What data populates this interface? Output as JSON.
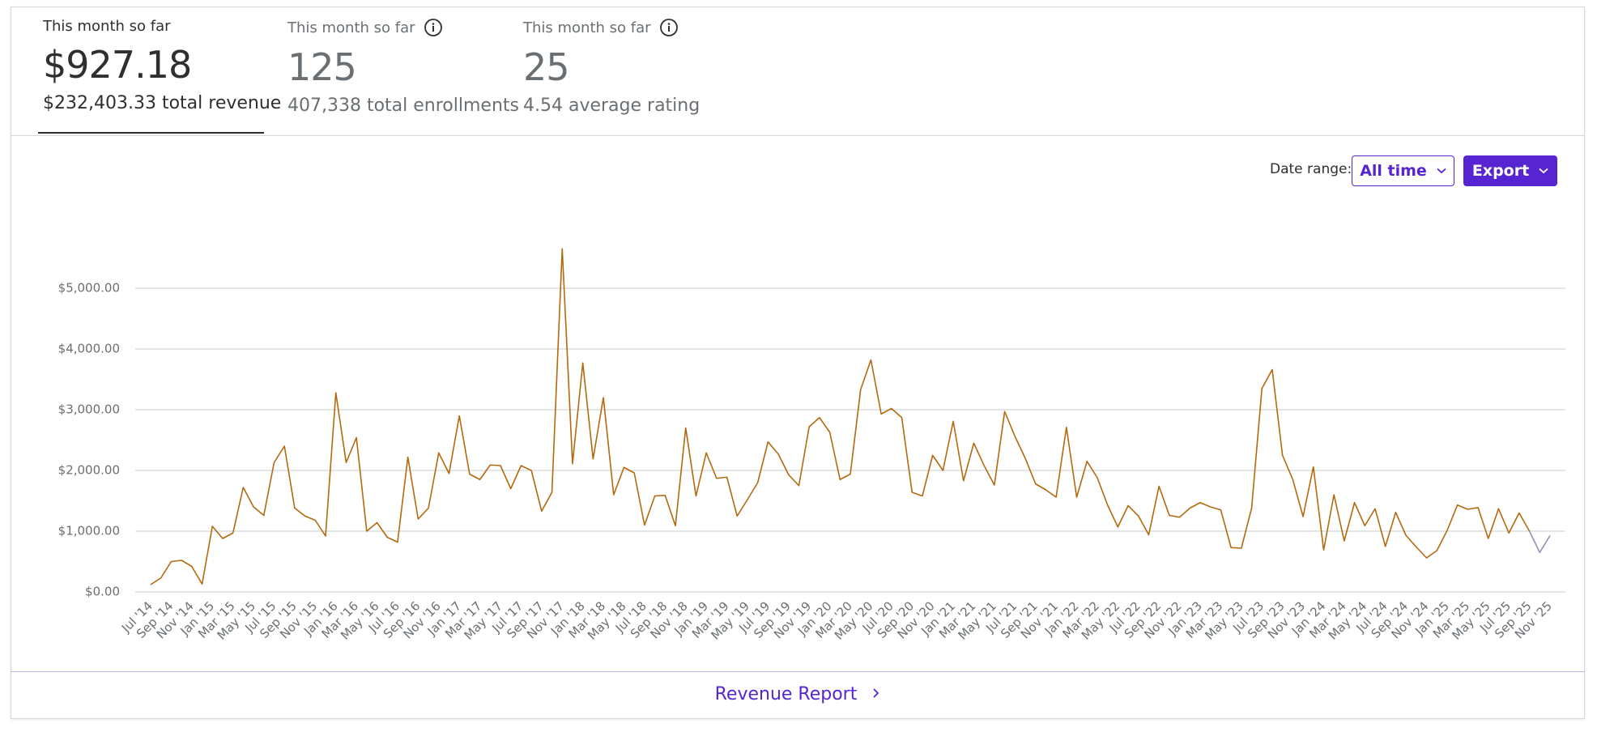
{
  "stats": [
    {
      "label": "This month so far",
      "value": "$927.18",
      "total": "$232,403.33 total revenue"
    },
    {
      "label": "This month so far",
      "value": "125",
      "total": "407,338 total enrollments"
    },
    {
      "label": "This month so far",
      "value": "25",
      "total": "4.54 average rating"
    }
  ],
  "controls": {
    "date_range_label": "Date range:",
    "date_range": "All time",
    "export": "Export"
  },
  "footer_link": "Revenue Report",
  "chart_data": {
    "type": "line",
    "categories": [
      "Jul '14",
      null,
      "Sep '14",
      null,
      "Nov '14",
      null,
      "Jan '15",
      null,
      "Mar '15",
      null,
      "May '15",
      null,
      "Jul '15",
      null,
      "Sep '15",
      null,
      "Nov '15",
      null,
      "Jan '16",
      null,
      "Mar '16",
      null,
      "May '16",
      null,
      "Jul '16",
      null,
      "Sep '16",
      null,
      "Nov '16",
      null,
      "Jan '17",
      null,
      "Mar '17",
      null,
      "May '17",
      null,
      "Jul '17",
      null,
      "Sep '17",
      null,
      "Nov '17",
      null,
      "Jan '18",
      null,
      "Mar '18",
      null,
      "May '18",
      null,
      "Jul '18",
      null,
      "Sep '18",
      null,
      "Nov '18",
      null,
      "Jan '19",
      null,
      "Mar '19",
      null,
      "May '19",
      null,
      "Jul '19",
      null,
      "Sep '19",
      null,
      "Nov '19",
      null,
      "Jan '20",
      null,
      "Mar '20",
      null,
      "May '20",
      null,
      "Jul '20",
      null,
      "Sep '20",
      null,
      "Nov '20",
      null,
      "Jan '21",
      null,
      "Mar '21",
      null,
      "May '21",
      null,
      "Jul '21",
      null,
      "Sep '21",
      null,
      "Nov '21",
      null,
      "Jan '22",
      null,
      "Mar '22",
      null,
      "May '22",
      null,
      "Jul '22",
      null,
      "Sep '22",
      null,
      "Nov '22",
      null,
      "Jan '23",
      null,
      "Mar '23",
      null,
      "May '23",
      null,
      "Jul '23",
      null,
      "Sep '23",
      null,
      "Nov '23",
      null,
      "Jan '24",
      null,
      "Mar '24",
      null,
      "May '24",
      null,
      "Jul '24",
      null,
      "Sep '24",
      null,
      "Nov '24",
      null,
      "Jan '25",
      null,
      "Mar '25",
      null,
      "May '25",
      null,
      "Jul '25",
      null,
      "Sep '25",
      null,
      "Nov '25"
    ],
    "series": [
      {
        "color": "#b4690e",
        "values": [
          120,
          230,
          500,
          520,
          420,
          130,
          1080,
          880,
          970,
          1720,
          1400,
          1260,
          2130,
          2400,
          1380,
          1250,
          1180,
          920,
          3280,
          2130,
          2540,
          1000,
          1140,
          900,
          820,
          2220,
          1200,
          1380,
          2290,
          1950,
          2900,
          1940,
          1850,
          2090,
          2080,
          1700,
          2080,
          2000,
          1330,
          1640,
          5650,
          2110,
          3770,
          2190,
          3200,
          1600,
          2050,
          1960,
          1100,
          1580,
          1590,
          1090,
          2700,
          1580,
          2290,
          1870,
          1890,
          1250,
          1520,
          1800,
          2470,
          2270,
          1930,
          1750,
          2720,
          2870,
          2630,
          1850,
          1940,
          3330,
          3820,
          2930,
          3020,
          2870,
          1640,
          1580,
          2250,
          2000,
          2810,
          1830,
          2450,
          2080,
          1760,
          2970,
          2560,
          2200,
          1780,
          1680,
          1560,
          2710,
          1560,
          2150,
          1880,
          1430,
          1070,
          1420,
          1250,
          940,
          1740,
          1260,
          1230,
          1380,
          1470,
          1400,
          1350,
          730,
          720,
          1380,
          3350,
          3660,
          2250,
          1850,
          1240,
          2060,
          690,
          1600,
          840,
          1470,
          1090,
          1370,
          750,
          1310,
          930,
          740,
          560,
          680,
          1010,
          1430,
          1360,
          1390,
          880,
          1370,
          970,
          1300,
          1000,
          null,
          null
        ]
      },
      {
        "color": "#8f94b0",
        "values": [
          null,
          null,
          null,
          null,
          null,
          null,
          null,
          null,
          null,
          null,
          null,
          null,
          null,
          null,
          null,
          null,
          null,
          null,
          null,
          null,
          null,
          null,
          null,
          null,
          null,
          null,
          null,
          null,
          null,
          null,
          null,
          null,
          null,
          null,
          null,
          null,
          null,
          null,
          null,
          null,
          null,
          null,
          null,
          null,
          null,
          null,
          null,
          null,
          null,
          null,
          null,
          null,
          null,
          null,
          null,
          null,
          null,
          null,
          null,
          null,
          null,
          null,
          null,
          null,
          null,
          null,
          null,
          null,
          null,
          null,
          null,
          null,
          null,
          null,
          null,
          null,
          null,
          null,
          null,
          null,
          null,
          null,
          null,
          null,
          null,
          null,
          null,
          null,
          null,
          null,
          null,
          null,
          null,
          null,
          null,
          null,
          null,
          null,
          null,
          null,
          null,
          null,
          null,
          null,
          null,
          null,
          null,
          null,
          null,
          null,
          null,
          null,
          null,
          null,
          null,
          null,
          null,
          null,
          null,
          null,
          null,
          null,
          null,
          null,
          null,
          null,
          null,
          null,
          null,
          null,
          null,
          null,
          null,
          null,
          1000,
          650,
          927.18
        ]
      }
    ],
    "ylim": [
      0,
      6000
    ],
    "yticks": [
      {
        "value": 0,
        "label": "$0.00"
      },
      {
        "value": 1000,
        "label": "$1,000.00"
      },
      {
        "value": 2000,
        "label": "$2,000.00"
      },
      {
        "value": 3000,
        "label": "$3,000.00"
      },
      {
        "value": 4000,
        "label": "$4,000.00"
      },
      {
        "value": 5000,
        "label": "$5,000.00"
      }
    ],
    "grid": true
  }
}
